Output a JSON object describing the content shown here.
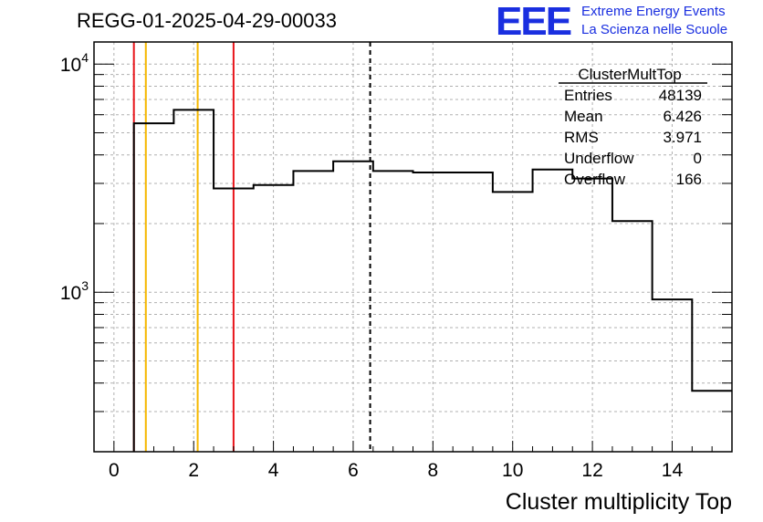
{
  "header": {
    "title": "REGG-01-2025-04-29-00033",
    "logo_text": "EEE",
    "logo_line1": "Extreme Energy Events",
    "logo_line2": "La Scienza nelle Scuole"
  },
  "stats": {
    "name": "ClusterMultTop",
    "rows": [
      {
        "label": "Entries",
        "value": "48139"
      },
      {
        "label": "Mean",
        "value": "6.426"
      },
      {
        "label": "RMS",
        "value": "3.971"
      },
      {
        "label": "Underflow",
        "value": "0"
      },
      {
        "label": "Overflow",
        "value": "166"
      }
    ]
  },
  "colors": {
    "histogram": "#000000",
    "red_line": "#e8141a",
    "orange_line": "#f5b800",
    "logo": "#1a2fe0",
    "grid": "#b0b0b0"
  },
  "chart_data": {
    "type": "bar",
    "style": "step-histogram",
    "title": "REGG-01-2025-04-29-00033",
    "xlabel": "Cluster multiplicity Top",
    "ylabel": "",
    "xlim": [
      -0.5,
      15.5
    ],
    "ylim": [
      200,
      12500
    ],
    "yscale": "log",
    "grid": true,
    "x_ticks": [
      "0",
      "2",
      "4",
      "6",
      "8",
      "10",
      "12",
      "14"
    ],
    "y_ticks": [
      {
        "base": "10",
        "exp": "3",
        "value": 1000
      },
      {
        "base": "10",
        "exp": "4",
        "value": 10000
      }
    ],
    "bin_width": 1,
    "bins": [
      {
        "x": 1,
        "value": 5500
      },
      {
        "x": 2,
        "value": 6300
      },
      {
        "x": 3,
        "value": 2850
      },
      {
        "x": 4,
        "value": 2950
      },
      {
        "x": 5,
        "value": 3400
      },
      {
        "x": 6,
        "value": 3750
      },
      {
        "x": 7,
        "value": 3400
      },
      {
        "x": 8,
        "value": 3350
      },
      {
        "x": 9,
        "value": 3350
      },
      {
        "x": 10,
        "value": 2750
      },
      {
        "x": 11,
        "value": 3450
      },
      {
        "x": 12,
        "value": 3150
      },
      {
        "x": 13,
        "value": 2050
      },
      {
        "x": 14,
        "value": 930
      },
      {
        "x": 15,
        "value": 370
      }
    ],
    "vertical_lines": [
      {
        "x": 0.5,
        "color": "red",
        "style": "solid"
      },
      {
        "x": 3.0,
        "color": "red",
        "style": "solid"
      },
      {
        "x": 0.8,
        "color": "orange",
        "style": "solid"
      },
      {
        "x": 2.1,
        "color": "orange",
        "style": "solid"
      },
      {
        "x": 6.426,
        "color": "black",
        "style": "dashed"
      }
    ],
    "legend_position": "top-right"
  }
}
